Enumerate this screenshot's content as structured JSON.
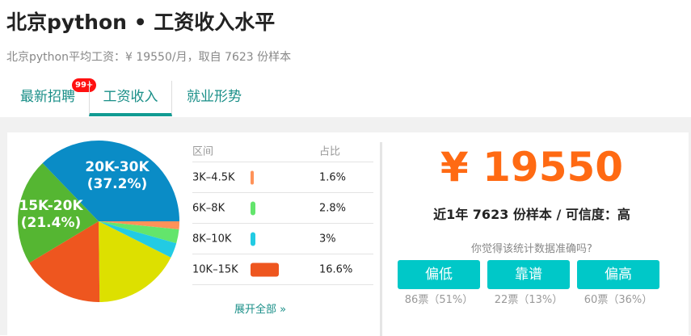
{
  "header": {
    "title": "北京python • 工资收入水平",
    "subtitle": "北京python平均工资：¥ 19550/月，取自 7623 份样本"
  },
  "tabs": [
    {
      "label": "最新招聘",
      "badge": "99+"
    },
    {
      "label": "工资收入",
      "active": true
    },
    {
      "label": "就业形势"
    }
  ],
  "table": {
    "col_range": "区间",
    "col_ratio": "占比",
    "rows": [
      {
        "range": "3K–4.5K",
        "ratio": "1.6%",
        "value": 1.6,
        "color": "#ff9259"
      },
      {
        "range": "6K–8K",
        "ratio": "2.8%",
        "value": 2.8,
        "color": "#63e56c"
      },
      {
        "range": "8K–10K",
        "ratio": "3%",
        "value": 3,
        "color": "#22cbe3"
      },
      {
        "range": "10K–15K",
        "ratio": "16.6%",
        "value": 16.6,
        "color": "#ee561f"
      }
    ],
    "expand": "展开全部 »"
  },
  "chart_data": {
    "type": "pie",
    "slices": [
      {
        "label": "3K-4.5K",
        "value": 1.6,
        "color": "#ff9259"
      },
      {
        "label": "6K-8K",
        "value": 2.8,
        "color": "#63e56c"
      },
      {
        "label": "8K-10K",
        "value": 3,
        "color": "#22cbe3"
      },
      {
        "label": "",
        "value": 17.4,
        "color": "#dde000"
      },
      {
        "label": "10K-15K",
        "value": 16.6,
        "color": "#ee561f"
      },
      {
        "label": "15K-20K",
        "value": 21.4,
        "color": "#55b632",
        "display": "15K-20K",
        "pct": "(21.4%)"
      },
      {
        "label": "20K-30K",
        "value": 37.2,
        "color": "#0a8cc6",
        "display": "20K-30K",
        "pct": "(37.2%)"
      }
    ]
  },
  "summary": {
    "salary": "¥ 19550",
    "detail": "近1年 7623 份样本 / 可信度：高",
    "question": "你觉得该统计数据准确吗?"
  },
  "votes": [
    {
      "label": "偏低",
      "count": "86票（51%）"
    },
    {
      "label": "靠谱",
      "count": "22票（13%）"
    },
    {
      "label": "偏高",
      "count": "60票（36%）"
    }
  ],
  "colors": {
    "accent": "#1a8f88",
    "button": "#00c8c8",
    "salary": "#ff6a13"
  }
}
